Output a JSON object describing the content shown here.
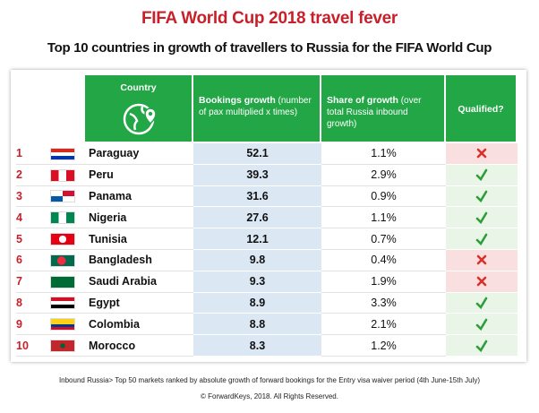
{
  "header": {
    "title": "FIFA World Cup 2018 travel fever",
    "subtitle": "Top 10 countries in growth of travellers to Russia for the FIFA World Cup"
  },
  "table": {
    "columns": [
      {
        "label": "Country"
      },
      {
        "label": "Bookings growth",
        "note": "(number of pax multiplied x times)"
      },
      {
        "label": "Share of growth",
        "note": "(over total Russia inbound growth)"
      },
      {
        "label": "Qualified?"
      }
    ],
    "rows": [
      {
        "rank": 1,
        "country": "Paraguay",
        "growth": 52.1,
        "share": "1.1%",
        "qualified": false
      },
      {
        "rank": 2,
        "country": "Peru",
        "growth": 39.3,
        "share": "2.9%",
        "qualified": true
      },
      {
        "rank": 3,
        "country": "Panama",
        "growth": 31.6,
        "share": "0.9%",
        "qualified": true
      },
      {
        "rank": 4,
        "country": "Nigeria",
        "growth": 27.6,
        "share": "1.1%",
        "qualified": true
      },
      {
        "rank": 5,
        "country": "Tunisia",
        "growth": 12.1,
        "share": "0.7%",
        "qualified": true
      },
      {
        "rank": 6,
        "country": "Bangladesh",
        "growth": 9.8,
        "share": "0.4%",
        "qualified": false
      },
      {
        "rank": 7,
        "country": "Saudi Arabia",
        "growth": 9.3,
        "share": "1.9%",
        "qualified": false
      },
      {
        "rank": 8,
        "country": "Egypt",
        "growth": 8.9,
        "share": "3.3%",
        "qualified": true
      },
      {
        "rank": 9,
        "country": "Colombia",
        "growth": 8.8,
        "share": "2.1%",
        "qualified": true
      },
      {
        "rank": 10,
        "country": "Morocco",
        "growth": 8.3,
        "share": "1.2%",
        "qualified": true
      }
    ]
  },
  "footer": {
    "note": "Inbound Russia> Top 50 markets ranked by absolute growth of forward bookings for the Entry visa waiver period (4th June-15th July)",
    "copyright": "© ForwardKeys, 2018. All Rights Reserved."
  }
}
